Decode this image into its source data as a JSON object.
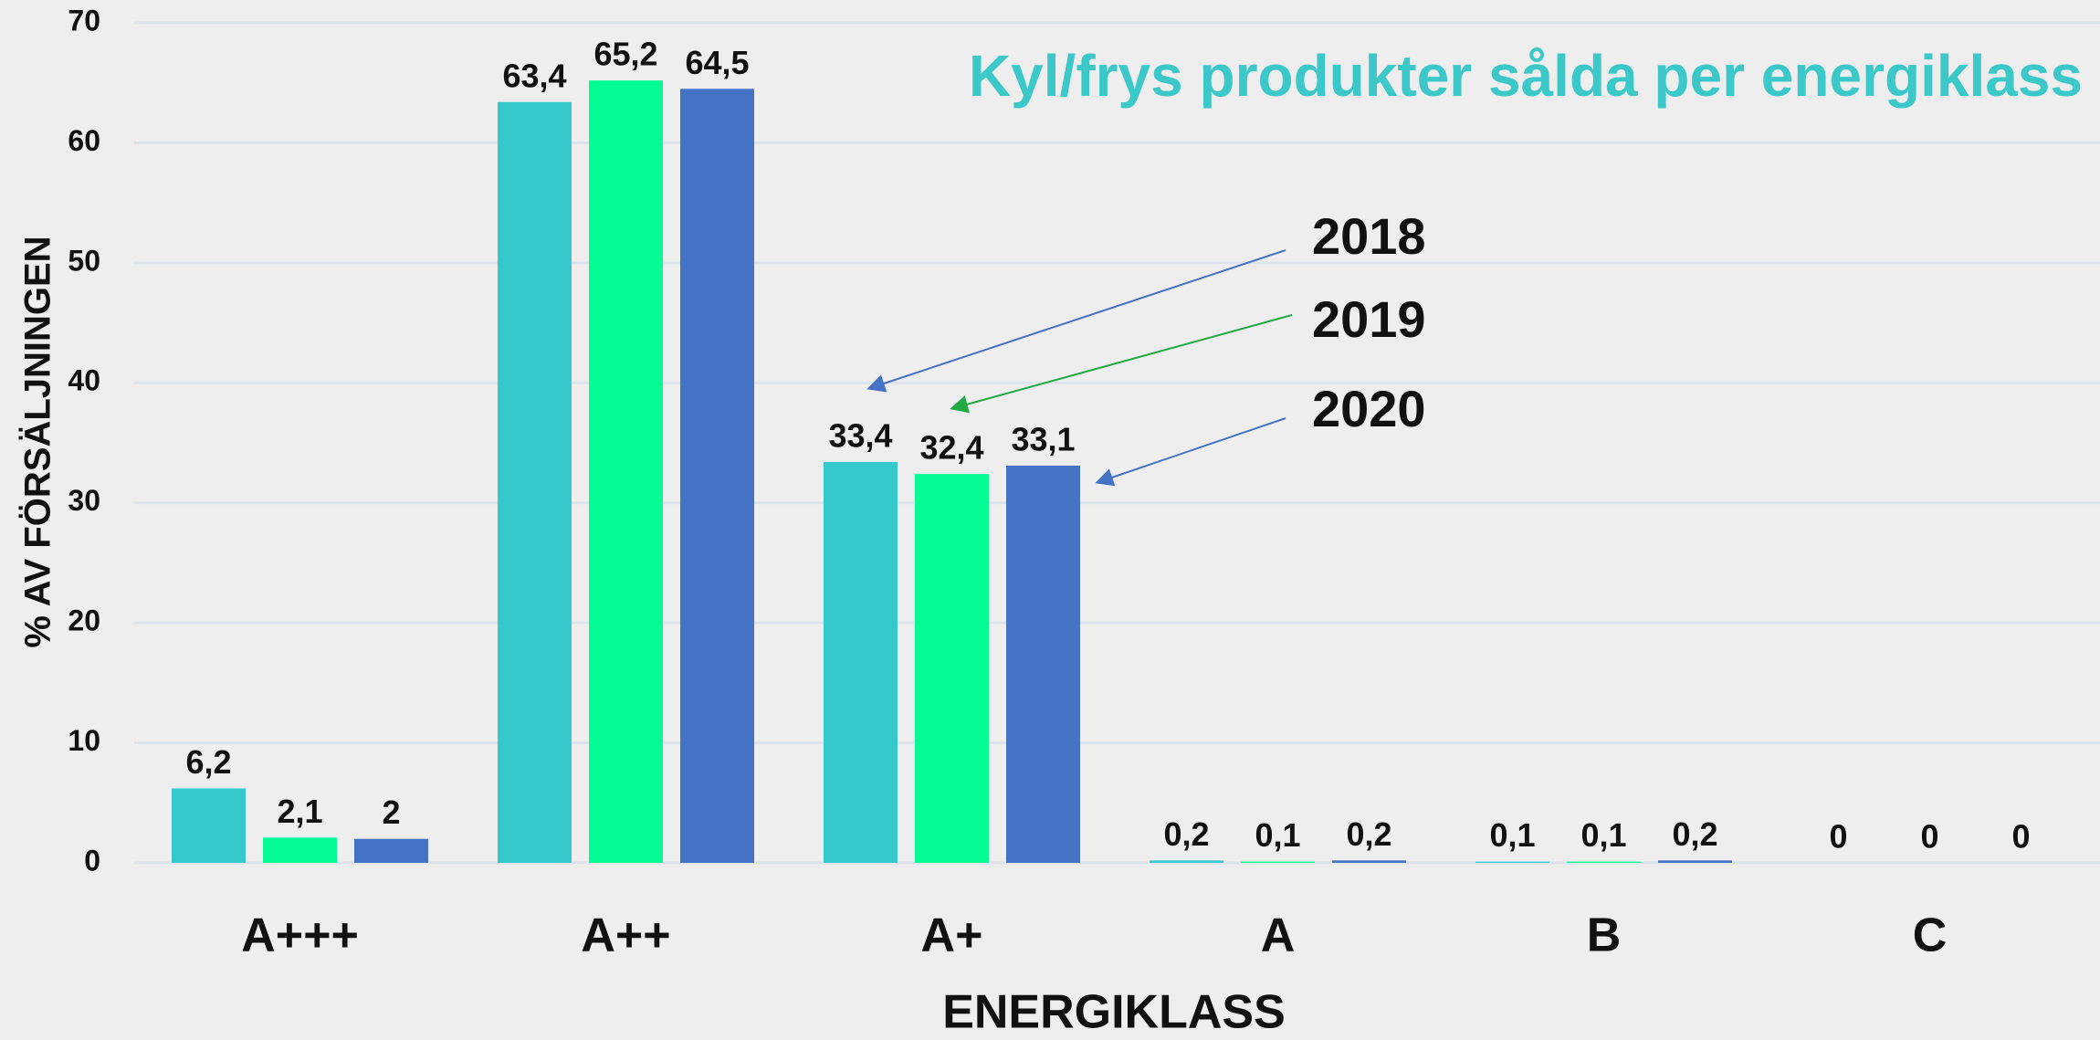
{
  "chart_data": {
    "type": "bar",
    "title": "Kyl/frys produkter sålda per energiklass",
    "x_label": "ENERGIKLASS",
    "y_label": "% AV FÖRSÄLJNINGEN",
    "categories": [
      "A+++",
      "A++",
      "A+",
      "A",
      "B",
      "C"
    ],
    "series": [
      {
        "name": "2018",
        "color": "#36c9cc",
        "values": [
          6.2,
          63.4,
          33.4,
          0.2,
          0.1,
          0
        ],
        "value_labels": [
          "6,2",
          "63,4",
          "33,4",
          "0,2",
          "0,1",
          "0"
        ]
      },
      {
        "name": "2019",
        "color": "#05fb94",
        "values": [
          2.1,
          65.2,
          32.4,
          0.1,
          0.1,
          0
        ],
        "value_labels": [
          "2,1",
          "65,2",
          "32,4",
          "0,1",
          "0,1",
          "0"
        ]
      },
      {
        "name": "2020",
        "color": "#4472c4",
        "values": [
          2,
          64.5,
          33.1,
          0.2,
          0.2,
          0
        ],
        "value_labels": [
          "2",
          "64,5",
          "33,1",
          "0,2",
          "0,2",
          "0"
        ]
      }
    ],
    "ylim": [
      0,
      70
    ],
    "yticks": [
      0,
      10,
      20,
      30,
      40,
      50,
      60,
      70
    ],
    "grid": true
  }
}
